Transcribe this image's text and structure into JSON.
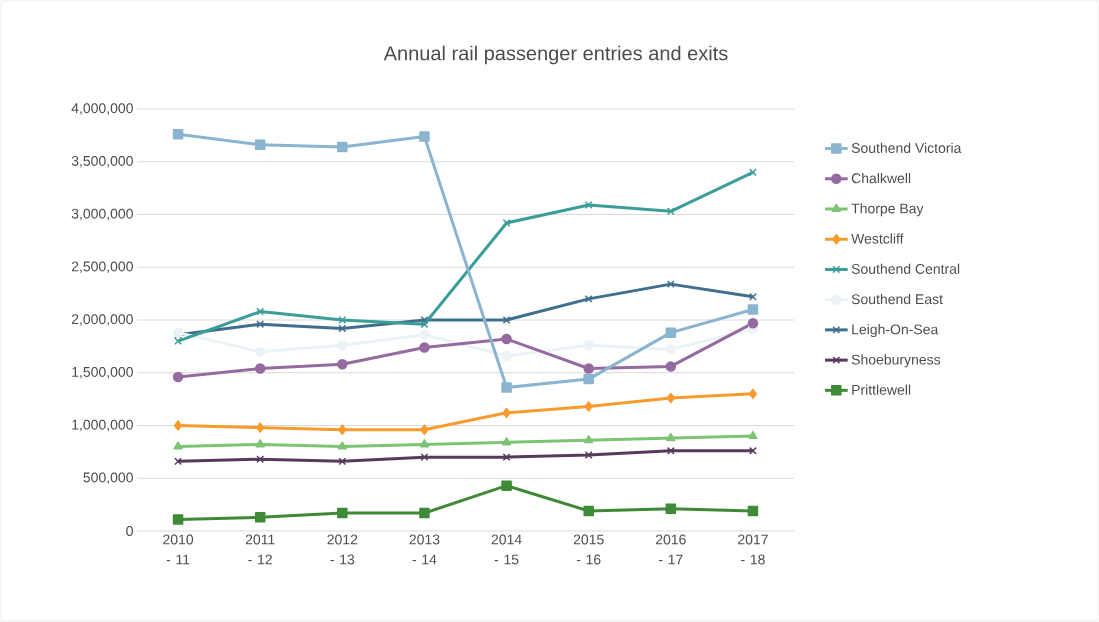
{
  "chart_data": {
    "type": "line",
    "title": "Annual rail passenger entries and exits",
    "categories": [
      "2010 - 11",
      "2011 - 12",
      "2012 - 13",
      "2013 - 14",
      "2014 - 15",
      "2015 - 16",
      "2016 - 17",
      "2017 - 18"
    ],
    "series": [
      {
        "name": "Southend Victoria",
        "color": "#8ab4cf",
        "marker": "square",
        "values": [
          3760000,
          3660000,
          3640000,
          3740000,
          1360000,
          1440000,
          1880000,
          2100000
        ]
      },
      {
        "name": "Chalkwell",
        "color": "#946aa0",
        "marker": "circle",
        "values": [
          1460000,
          1540000,
          1580000,
          1740000,
          1820000,
          1540000,
          1560000,
          1970000
        ]
      },
      {
        "name": "Thorpe Bay",
        "color": "#7dc374",
        "marker": "triangle",
        "values": [
          800000,
          820000,
          800000,
          820000,
          840000,
          860000,
          880000,
          900000
        ]
      },
      {
        "name": "Westcliff",
        "color": "#f99a2d",
        "marker": "diamond",
        "values": [
          1000000,
          980000,
          960000,
          960000,
          1120000,
          1180000,
          1260000,
          1300000
        ]
      },
      {
        "name": "Southend Central",
        "color": "#3a9d98",
        "marker": "cross",
        "values": [
          1800000,
          2080000,
          2000000,
          1960000,
          2920000,
          3090000,
          3030000,
          3400000
        ]
      },
      {
        "name": "Southend East",
        "color": "#ecf3f7",
        "marker": "circle",
        "values": [
          1880000,
          1700000,
          1760000,
          1860000,
          1660000,
          1760000,
          1720000,
          1920000
        ]
      },
      {
        "name": "Leigh-On-Sea",
        "color": "#3f6f8d",
        "marker": "cross",
        "values": [
          1860000,
          1960000,
          1920000,
          2000000,
          2000000,
          2200000,
          2340000,
          2220000
        ]
      },
      {
        "name": "Shoeburyness",
        "color": "#583a5c",
        "marker": "cross",
        "values": [
          660000,
          680000,
          660000,
          700000,
          700000,
          720000,
          760000,
          760000
        ]
      },
      {
        "name": "Prittlewell",
        "color": "#3f8a37",
        "marker": "square",
        "values": [
          110000,
          130000,
          170000,
          170000,
          430000,
          190000,
          210000,
          190000
        ]
      }
    ],
    "ylim": [
      0,
      4000000
    ],
    "yticks": [
      0,
      {
        "value": 500000,
        "label": "500,000"
      },
      {
        "value": 1000000,
        "label": "1,000,000"
      },
      {
        "value": 1500000,
        "label": "1,500,000"
      },
      {
        "value": 2000000,
        "label": "2,000,000"
      },
      {
        "value": 2500000,
        "label": "2,500,000"
      },
      {
        "value": 3000000,
        "label": "3,000,000"
      },
      {
        "value": 3500000,
        "label": "3,500,000"
      },
      {
        "value": 4000000,
        "label": "4,000,000"
      }
    ],
    "grid": "y",
    "legend": "right"
  }
}
